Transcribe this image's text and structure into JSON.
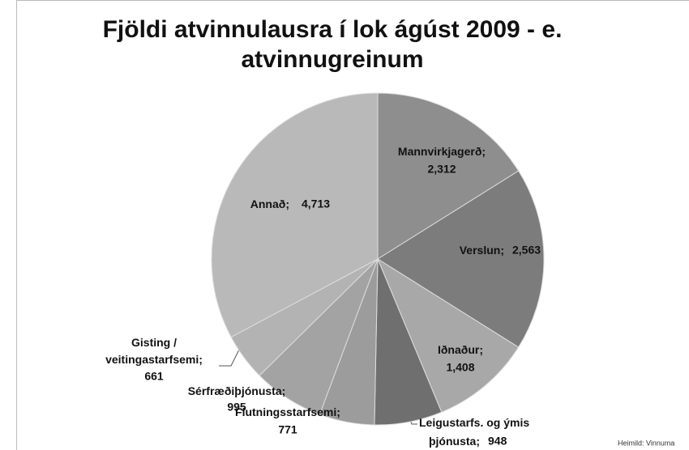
{
  "chart_data": {
    "type": "pie",
    "title": "Fjöldi atvinnulausra í lok ágúst 2009 - e. atvinnugreinum",
    "categories": [
      "Mannvirkjagerð",
      "Verslun",
      "Iðnaður",
      "Leigustarfs. og ýmis þjónusta",
      "Flutningsstarfsemi",
      "Sérfræðiþjónusta",
      "Gisting / veitingastarfsemi",
      "Annað"
    ],
    "values": [
      2312,
      2563,
      1408,
      948,
      771,
      995,
      661,
      4713
    ],
    "value_labels": [
      "2,312",
      "2,563",
      "1,408",
      "948",
      "771",
      "995",
      "661",
      "4,713"
    ],
    "label_separator": ";",
    "colors": [
      "#8e8e8e",
      "#7c7c7c",
      "#a8a8a8",
      "#6f6f6f",
      "#9c9c9c",
      "#a3a3a3",
      "#b3b3b3",
      "#b9b9b9"
    ],
    "source": "Heimild: Vinnuma"
  }
}
